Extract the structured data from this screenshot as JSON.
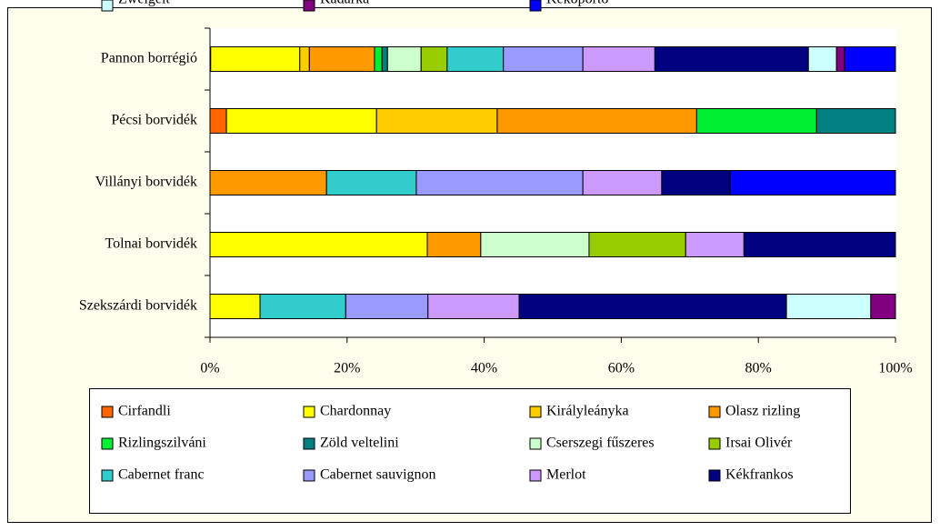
{
  "chart_data": {
    "type": "stacked-bar-horizontal",
    "categories": [
      "Pannon borrégió",
      "Pécsi borvidék",
      "Villányi borvidék",
      "Tolnai borvidék",
      "Szekszárdi borvidék"
    ],
    "series": [
      {
        "name": "Cirfandli",
        "color": "#ff6600",
        "values": [
          0.1,
          2.4,
          0,
          0,
          0
        ]
      },
      {
        "name": "Chardonnay",
        "color": "#ffff00",
        "values": [
          13.0,
          21.9,
          0,
          31.7,
          7.3
        ]
      },
      {
        "name": "Királyleányka",
        "color": "#ffcc00",
        "values": [
          1.4,
          17.6,
          0,
          0,
          0
        ]
      },
      {
        "name": "Olasz rizling",
        "color": "#ff9900",
        "values": [
          9.5,
          29.1,
          17.0,
          7.8,
          0
        ]
      },
      {
        "name": "Rizlingszilváni",
        "color": "#00ee33",
        "values": [
          1.1,
          17.5,
          0,
          0,
          0
        ]
      },
      {
        "name": "Zöld veltelini",
        "color": "#008080",
        "values": [
          0.8,
          11.5,
          0,
          0,
          0
        ]
      },
      {
        "name": "Cserszegi fűszeres",
        "color": "#ccffcc",
        "values": [
          4.9,
          0,
          0,
          15.8,
          0
        ]
      },
      {
        "name": "Irsai Olivér",
        "color": "#99cc00",
        "values": [
          3.8,
          0,
          0,
          14.1,
          0
        ]
      },
      {
        "name": "Cabernet franc",
        "color": "#33cccc",
        "values": [
          8.2,
          0,
          13.1,
          0,
          12.5
        ]
      },
      {
        "name": "Cabernet sauvignon",
        "color": "#9999ff",
        "values": [
          11.6,
          0,
          24.3,
          0,
          12.0
        ]
      },
      {
        "name": "Merlot",
        "color": "#cc99ff",
        "values": [
          10.5,
          0,
          11.5,
          8.5,
          13.3
        ]
      },
      {
        "name": "Kékfrankos",
        "color": "#000080",
        "values": [
          22.4,
          0,
          10.0,
          22.1,
          39.0
        ]
      },
      {
        "name": "Zweigelt",
        "color": "#ccffff",
        "values": [
          4.1,
          0,
          0,
          0,
          12.3
        ]
      },
      {
        "name": "Kadarka",
        "color": "#800080",
        "values": [
          1.2,
          0,
          0,
          0,
          3.6
        ]
      },
      {
        "name": "Kékoportó",
        "color": "#0000ff",
        "values": [
          7.4,
          0,
          24.1,
          0,
          0
        ]
      }
    ],
    "xlim": [
      0,
      100
    ],
    "xticks": [
      {
        "value": 0,
        "label": "0%"
      },
      {
        "value": 20,
        "label": "20%"
      },
      {
        "value": 40,
        "label": "40%"
      },
      {
        "value": 60,
        "label": "60%"
      },
      {
        "value": 80,
        "label": "80%"
      },
      {
        "value": 100,
        "label": "100%"
      }
    ]
  }
}
